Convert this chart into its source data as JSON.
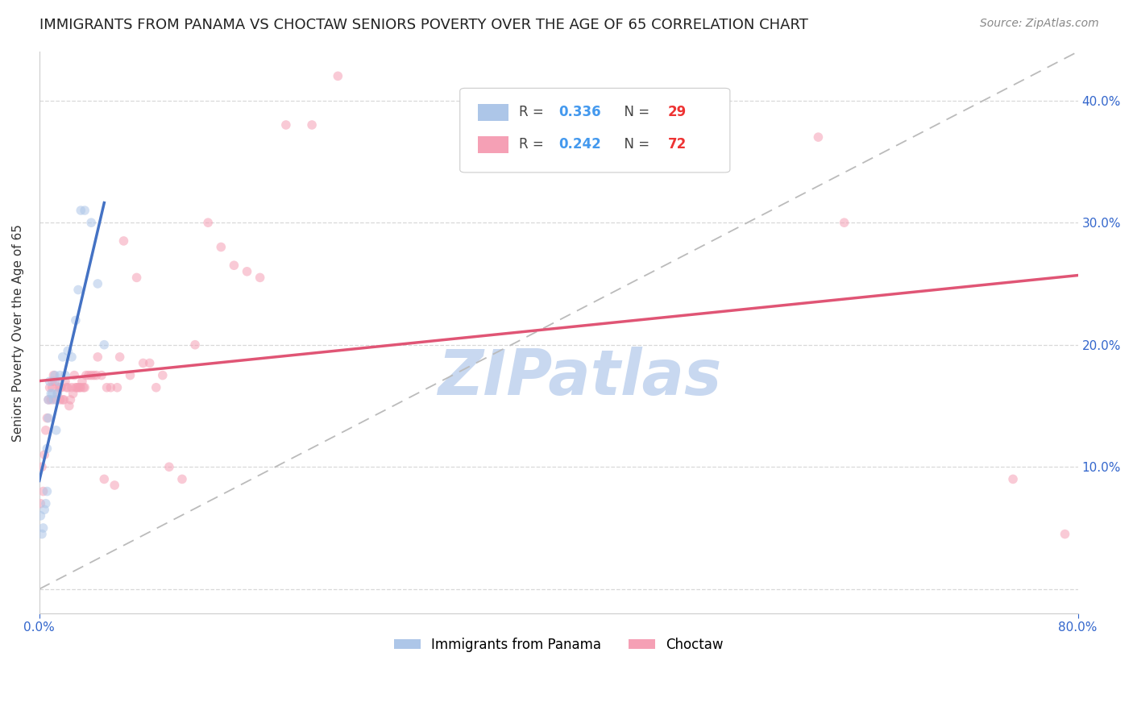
{
  "title": "IMMIGRANTS FROM PANAMA VS CHOCTAW SENIORS POVERTY OVER THE AGE OF 65 CORRELATION CHART",
  "source": "Source: ZipAtlas.com",
  "ylabel": "Seniors Poverty Over the Age of 65",
  "ytick_labels": [
    "",
    "10.0%",
    "20.0%",
    "30.0%",
    "40.0%"
  ],
  "yticks": [
    0.0,
    0.1,
    0.2,
    0.3,
    0.4
  ],
  "xmin": 0.0,
  "xmax": 0.8,
  "ymin": -0.02,
  "ymax": 0.44,
  "r_panama": 0.336,
  "n_panama": 29,
  "r_choctaw": 0.242,
  "n_choctaw": 72,
  "panama_color": "#adc6e8",
  "choctaw_color": "#f5a0b5",
  "trendline_panama_color": "#4472c4",
  "trendline_choctaw_color": "#e05575",
  "diagonal_color": "#bbbbbb",
  "watermark_color": "#c8d8f0",
  "panama_x": [
    0.001,
    0.002,
    0.003,
    0.004,
    0.005,
    0.006,
    0.006,
    0.007,
    0.007,
    0.008,
    0.009,
    0.01,
    0.011,
    0.012,
    0.013,
    0.014,
    0.015,
    0.016,
    0.018,
    0.02,
    0.022,
    0.025,
    0.028,
    0.03,
    0.032,
    0.035,
    0.04,
    0.045,
    0.05
  ],
  "panama_y": [
    0.06,
    0.045,
    0.05,
    0.065,
    0.07,
    0.08,
    0.115,
    0.14,
    0.155,
    0.17,
    0.16,
    0.16,
    0.155,
    0.175,
    0.13,
    0.16,
    0.17,
    0.175,
    0.19,
    0.175,
    0.195,
    0.19,
    0.22,
    0.245,
    0.31,
    0.31,
    0.3,
    0.25,
    0.2
  ],
  "choctaw_x": [
    0.001,
    0.002,
    0.003,
    0.004,
    0.005,
    0.006,
    0.007,
    0.008,
    0.009,
    0.01,
    0.01,
    0.011,
    0.012,
    0.013,
    0.014,
    0.015,
    0.016,
    0.016,
    0.017,
    0.018,
    0.019,
    0.02,
    0.021,
    0.022,
    0.023,
    0.024,
    0.025,
    0.026,
    0.027,
    0.028,
    0.029,
    0.03,
    0.031,
    0.032,
    0.033,
    0.034,
    0.035,
    0.036,
    0.038,
    0.04,
    0.042,
    0.044,
    0.045,
    0.048,
    0.05,
    0.052,
    0.055,
    0.058,
    0.06,
    0.062,
    0.065,
    0.07,
    0.075,
    0.08,
    0.085,
    0.09,
    0.095,
    0.1,
    0.11,
    0.12,
    0.13,
    0.14,
    0.15,
    0.16,
    0.17,
    0.19,
    0.21,
    0.23,
    0.6,
    0.62,
    0.75,
    0.79
  ],
  "choctaw_y": [
    0.07,
    0.1,
    0.08,
    0.11,
    0.13,
    0.14,
    0.155,
    0.165,
    0.155,
    0.165,
    0.17,
    0.175,
    0.17,
    0.155,
    0.16,
    0.165,
    0.155,
    0.165,
    0.165,
    0.155,
    0.155,
    0.17,
    0.165,
    0.165,
    0.15,
    0.155,
    0.165,
    0.16,
    0.175,
    0.165,
    0.165,
    0.165,
    0.165,
    0.165,
    0.17,
    0.165,
    0.165,
    0.175,
    0.175,
    0.175,
    0.175,
    0.175,
    0.19,
    0.175,
    0.09,
    0.165,
    0.165,
    0.085,
    0.165,
    0.19,
    0.285,
    0.175,
    0.255,
    0.185,
    0.185,
    0.165,
    0.175,
    0.1,
    0.09,
    0.2,
    0.3,
    0.28,
    0.265,
    0.26,
    0.255,
    0.38,
    0.38,
    0.42,
    0.37,
    0.3,
    0.09,
    0.045
  ],
  "marker_size": 70,
  "marker_alpha": 0.55,
  "title_fontsize": 13,
  "source_fontsize": 10,
  "axis_label_fontsize": 11,
  "tick_fontsize": 11,
  "legend_fontsize": 12
}
